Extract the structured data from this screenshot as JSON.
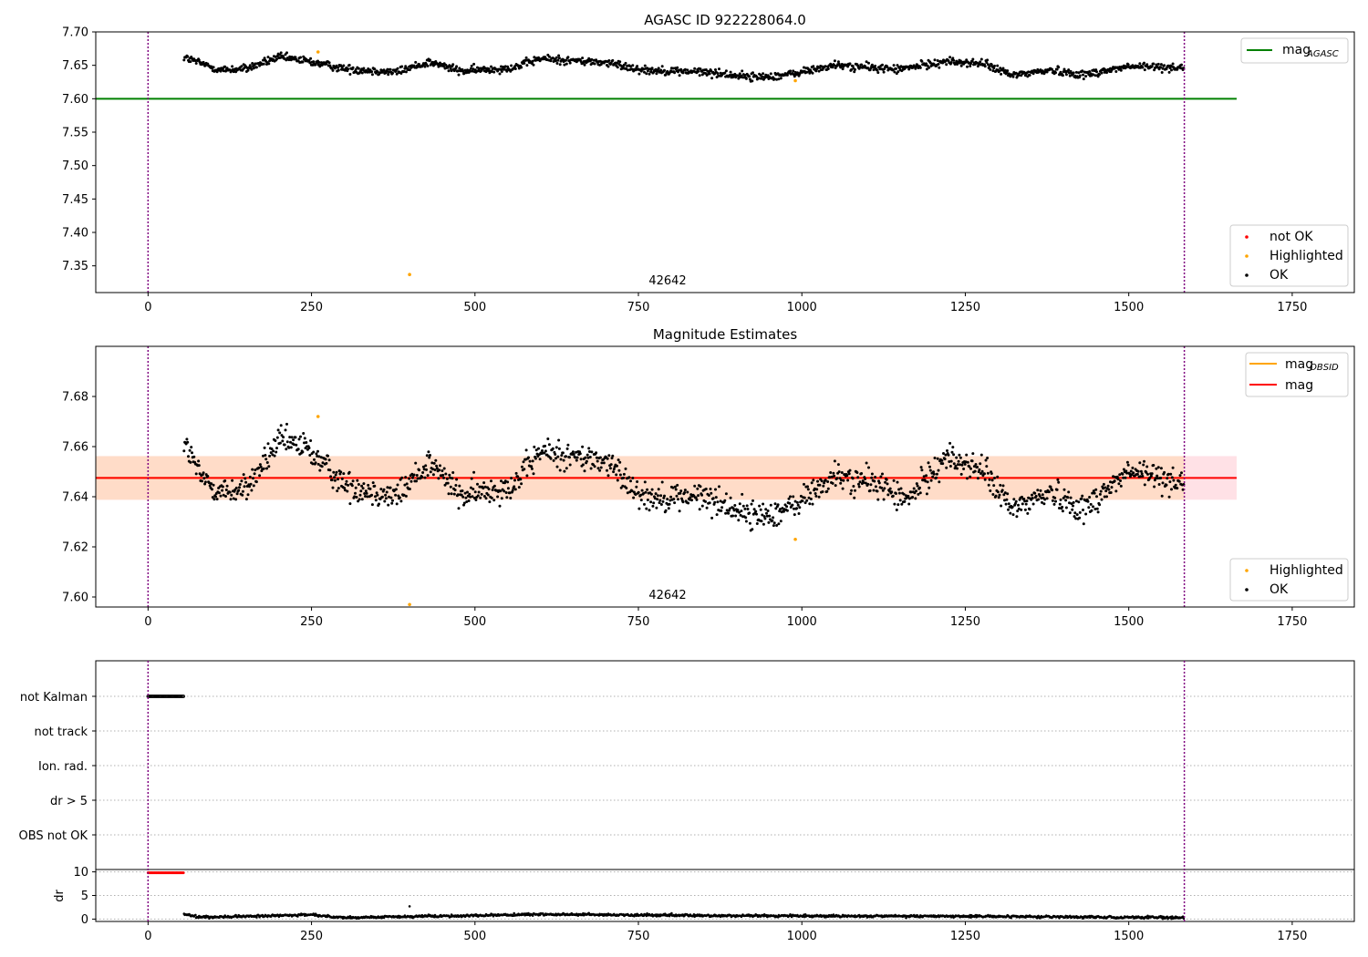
{
  "chart_data": [
    {
      "type": "scatter",
      "title": "AGASC ID 922228064.0",
      "xlabel": "",
      "ylabel": "",
      "xlim": [
        -80,
        1845
      ],
      "ylim": [
        7.31,
        7.7
      ],
      "xticks": [
        "0",
        "250",
        "500",
        "750",
        "1000",
        "1250",
        "1500",
        "1750"
      ],
      "yticks": [
        "7.35",
        "7.40",
        "7.45",
        "7.50",
        "7.55",
        "7.60",
        "7.65",
        "7.70"
      ],
      "grid": false,
      "vlines": [
        0,
        1585
      ],
      "annotation": {
        "text": "42642",
        "x": 795,
        "y": 7.317
      },
      "mag_agasc": {
        "value": 7.6,
        "x0": -80,
        "x1": 1665,
        "color": "#008000"
      },
      "legend_lines": [
        {
          "label": "mag",
          "sub": "AGASC",
          "color": "#008000"
        }
      ],
      "legend_points": [
        {
          "label": "not OK",
          "color": "#ff0000"
        },
        {
          "label": "Highlighted",
          "color": "#ffa500"
        },
        {
          "label": "OK",
          "color": "#000000"
        }
      ],
      "series": [
        {
          "role": "ok",
          "x_start": 55,
          "x_end": 1585,
          "baseline": [
            [
              55,
              7.662
            ],
            [
              110,
              7.643
            ],
            [
              150,
              7.645
            ],
            [
              200,
              7.662
            ],
            [
              240,
              7.657
            ],
            [
              300,
              7.645
            ],
            [
              380,
              7.64
            ],
            [
              430,
              7.655
            ],
            [
              480,
              7.641
            ],
            [
              560,
              7.647
            ],
            [
              600,
              7.66
            ],
            [
              700,
              7.654
            ],
            [
              760,
              7.643
            ],
            [
              850,
              7.64
            ],
            [
              930,
              7.632
            ],
            [
              980,
              7.636
            ],
            [
              1050,
              7.65
            ],
            [
              1150,
              7.644
            ],
            [
              1220,
              7.656
            ],
            [
              1280,
              7.652
            ],
            [
              1320,
              7.635
            ],
            [
              1380,
              7.643
            ],
            [
              1430,
              7.636
            ],
            [
              1500,
              7.648
            ],
            [
              1585,
              7.647
            ]
          ],
          "noise": 0.006
        },
        {
          "role": "highlighted",
          "points": [
            [
              260,
              7.67
            ],
            [
              400,
              7.337
            ],
            [
              990,
              7.627
            ]
          ]
        }
      ]
    },
    {
      "type": "scatter",
      "title": "Magnitude Estimates",
      "xlabel": "",
      "ylabel": "",
      "xlim": [
        -80,
        1845
      ],
      "ylim": [
        7.596,
        7.7
      ],
      "xticks": [
        "0",
        "250",
        "500",
        "750",
        "1000",
        "1250",
        "1500",
        "1750"
      ],
      "yticks": [
        "7.60",
        "7.62",
        "7.64",
        "7.66",
        "7.68"
      ],
      "grid": false,
      "vlines": [
        0,
        1585
      ],
      "annotation": {
        "text": "42642",
        "x": 795,
        "y": 7.599
      },
      "mag": {
        "value": 7.6475,
        "x0": -80,
        "x1": 1665,
        "color": "#ff0000"
      },
      "mag_obsid": {
        "value": 7.6475,
        "x0": -80,
        "x1": 1585,
        "color": "#ffa500"
      },
      "band_pink": {
        "y0": 7.6388,
        "y1": 7.6562,
        "x0": -80,
        "x1": 1665,
        "color": "#ffe1e6"
      },
      "band_orange": {
        "y0": 7.6388,
        "y1": 7.6562,
        "x0": -80,
        "x1": 1585,
        "color": "#ffdcc8"
      },
      "legend_lines": [
        {
          "label": "mag",
          "sub": "OBSID",
          "color": "#ffa500"
        },
        {
          "label": "mag",
          "sub": "",
          "color": "#ff0000"
        }
      ],
      "legend_points": [
        {
          "label": "Highlighted",
          "color": "#ffa500"
        },
        {
          "label": "OK",
          "color": "#000000"
        }
      ],
      "series": [
        {
          "role": "ok",
          "x_start": 55,
          "x_end": 1585,
          "baseline": [
            [
              55,
              7.662
            ],
            [
              80,
              7.648
            ],
            [
              110,
              7.642
            ],
            [
              150,
              7.643
            ],
            [
              200,
              7.662
            ],
            [
              240,
              7.66
            ],
            [
              300,
              7.645
            ],
            [
              380,
              7.64
            ],
            [
              430,
              7.654
            ],
            [
              480,
              7.64
            ],
            [
              560,
              7.645
            ],
            [
              600,
              7.658
            ],
            [
              700,
              7.654
            ],
            [
              760,
              7.64
            ],
            [
              850,
              7.64
            ],
            [
              930,
              7.632
            ],
            [
              980,
              7.635
            ],
            [
              1050,
              7.648
            ],
            [
              1120,
              7.645
            ],
            [
              1160,
              7.638
            ],
            [
              1220,
              7.656
            ],
            [
              1280,
              7.65
            ],
            [
              1320,
              7.635
            ],
            [
              1380,
              7.642
            ],
            [
              1430,
              7.635
            ],
            [
              1500,
              7.65
            ],
            [
              1585,
              7.646
            ]
          ],
          "noise": 0.0055
        },
        {
          "role": "highlighted",
          "points": [
            [
              260,
              7.672
            ],
            [
              400,
              7.597
            ],
            [
              990,
              7.623
            ]
          ]
        }
      ]
    },
    {
      "type": "scatter",
      "title": "",
      "xlim": [
        -80,
        1845
      ],
      "xticks": [
        "0",
        "250",
        "500",
        "750",
        "1000",
        "1250",
        "1500",
        "1750"
      ],
      "vlines": [
        0,
        1585
      ],
      "flag_labels": [
        "not Kalman",
        "not track",
        "Ion. rad.",
        "dr > 5",
        "OBS not OK"
      ],
      "flag_series": [
        {
          "flag": "not Kalman",
          "x_start": 0,
          "x_end": 55
        }
      ],
      "dr_panel": {
        "ylabel": "dr",
        "ylim": [
          -0.5,
          10.5
        ],
        "yticks": [
          "0",
          "5",
          "10"
        ],
        "not_ok": {
          "x_start": 0,
          "x_end": 55,
          "value": 9.8,
          "color": "#ff0000"
        },
        "ok": {
          "x_start": 55,
          "x_end": 1585,
          "baseline": [
            [
              55,
              1.0
            ],
            [
              80,
              0.4
            ],
            [
              250,
              0.9
            ],
            [
              300,
              0.3
            ],
            [
              600,
              1.0
            ],
            [
              900,
              0.7
            ],
            [
              1250,
              0.6
            ],
            [
              1585,
              0.3
            ]
          ],
          "noise": 0.25
        },
        "outlier": [
          [
            400,
            2.7
          ]
        ]
      }
    }
  ]
}
